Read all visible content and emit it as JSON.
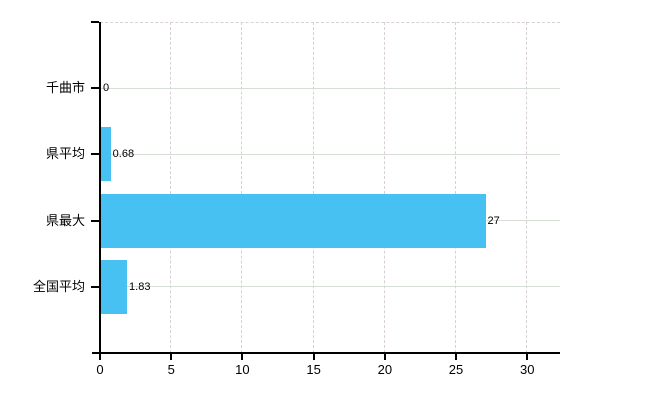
{
  "chart_data": {
    "type": "bar",
    "orientation": "horizontal",
    "title": "",
    "xlabel": "",
    "ylabel": "",
    "categories": [
      "千曲市",
      "県平均",
      "県最大",
      "全国平均"
    ],
    "values": [
      0,
      0.68,
      27,
      1.83
    ],
    "value_labels": [
      "0",
      "0.68",
      "27",
      "1.83"
    ],
    "xticks": [
      0,
      5,
      10,
      15,
      20,
      25,
      30
    ],
    "xlim": [
      0,
      32.3
    ],
    "legend": null,
    "grid": {
      "horizontal": "solid",
      "vertical": "dashed",
      "top_border": "dashed"
    },
    "colors": {
      "bar": "#47c1f2",
      "h_grid": "#d6ded6",
      "v_grid": "#d9d0d7",
      "axis": "#000000",
      "text": "#000000",
      "background": "#ffffff"
    }
  }
}
